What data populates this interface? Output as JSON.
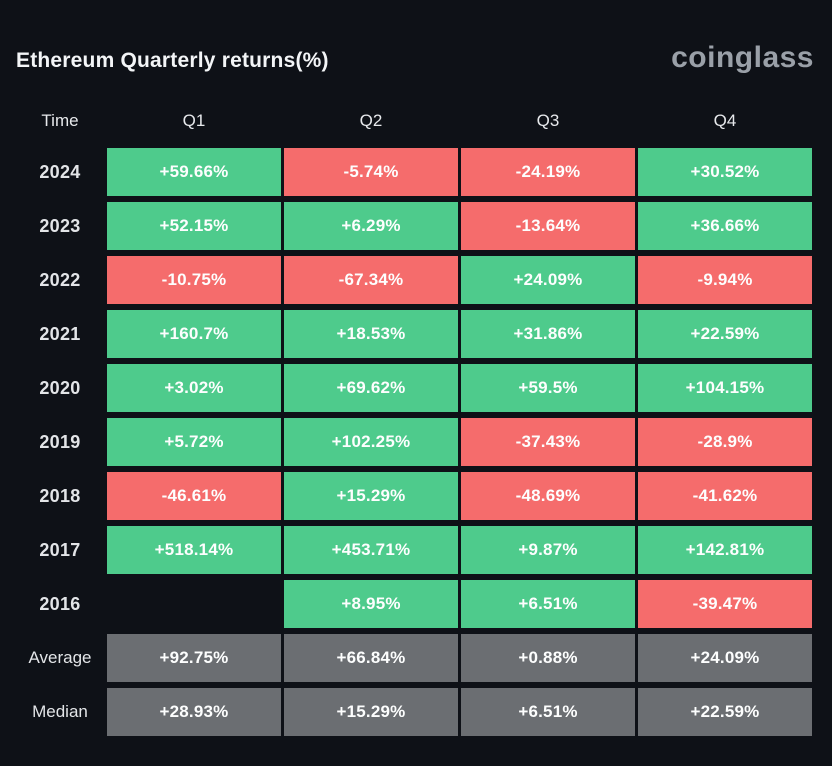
{
  "header": {
    "title": "Ethereum Quarterly returns(%)",
    "logo": "coinglass"
  },
  "colors": {
    "positive": "#4ecb8c",
    "negative": "#f56c6c",
    "neutral": "#6b6e72",
    "background": "#0e1117",
    "cell_text": "#fdfefe",
    "label_text": "#e3e5e8",
    "logo_text": "#9aa0a8"
  },
  "chart_data": {
    "type": "table",
    "title": "Ethereum Quarterly returns(%)",
    "columns": [
      "Time",
      "Q1",
      "Q2",
      "Q3",
      "Q4"
    ],
    "rows": [
      {
        "label": "2024",
        "cells": [
          {
            "value": "+59.66%",
            "state": "positive"
          },
          {
            "value": "-5.74%",
            "state": "negative"
          },
          {
            "value": "-24.19%",
            "state": "negative"
          },
          {
            "value": "+30.52%",
            "state": "positive"
          }
        ]
      },
      {
        "label": "2023",
        "cells": [
          {
            "value": "+52.15%",
            "state": "positive"
          },
          {
            "value": "+6.29%",
            "state": "positive"
          },
          {
            "value": "-13.64%",
            "state": "negative"
          },
          {
            "value": "+36.66%",
            "state": "positive"
          }
        ]
      },
      {
        "label": "2022",
        "cells": [
          {
            "value": "-10.75%",
            "state": "negative"
          },
          {
            "value": "-67.34%",
            "state": "negative"
          },
          {
            "value": "+24.09%",
            "state": "positive"
          },
          {
            "value": "-9.94%",
            "state": "negative"
          }
        ]
      },
      {
        "label": "2021",
        "cells": [
          {
            "value": "+160.7%",
            "state": "positive"
          },
          {
            "value": "+18.53%",
            "state": "positive"
          },
          {
            "value": "+31.86%",
            "state": "positive"
          },
          {
            "value": "+22.59%",
            "state": "positive"
          }
        ]
      },
      {
        "label": "2020",
        "cells": [
          {
            "value": "+3.02%",
            "state": "positive"
          },
          {
            "value": "+69.62%",
            "state": "positive"
          },
          {
            "value": "+59.5%",
            "state": "positive"
          },
          {
            "value": "+104.15%",
            "state": "positive"
          }
        ]
      },
      {
        "label": "2019",
        "cells": [
          {
            "value": "+5.72%",
            "state": "positive"
          },
          {
            "value": "+102.25%",
            "state": "positive"
          },
          {
            "value": "-37.43%",
            "state": "negative"
          },
          {
            "value": "-28.9%",
            "state": "negative"
          }
        ]
      },
      {
        "label": "2018",
        "cells": [
          {
            "value": "-46.61%",
            "state": "negative"
          },
          {
            "value": "+15.29%",
            "state": "positive"
          },
          {
            "value": "-48.69%",
            "state": "negative"
          },
          {
            "value": "-41.62%",
            "state": "negative"
          }
        ]
      },
      {
        "label": "2017",
        "cells": [
          {
            "value": "+518.14%",
            "state": "positive"
          },
          {
            "value": "+453.71%",
            "state": "positive"
          },
          {
            "value": "+9.87%",
            "state": "positive"
          },
          {
            "value": "+142.81%",
            "state": "positive"
          }
        ]
      },
      {
        "label": "2016",
        "cells": [
          {
            "value": "",
            "state": "empty"
          },
          {
            "value": "+8.95%",
            "state": "positive"
          },
          {
            "value": "+6.51%",
            "state": "positive"
          },
          {
            "value": "-39.47%",
            "state": "negative"
          }
        ]
      },
      {
        "label": "Average",
        "cells": [
          {
            "value": "+92.75%",
            "state": "neutral"
          },
          {
            "value": "+66.84%",
            "state": "neutral"
          },
          {
            "value": "+0.88%",
            "state": "neutral"
          },
          {
            "value": "+24.09%",
            "state": "neutral"
          }
        ]
      },
      {
        "label": "Median",
        "cells": [
          {
            "value": "+28.93%",
            "state": "neutral"
          },
          {
            "value": "+15.29%",
            "state": "neutral"
          },
          {
            "value": "+6.51%",
            "state": "neutral"
          },
          {
            "value": "+22.59%",
            "state": "neutral"
          }
        ]
      }
    ]
  }
}
